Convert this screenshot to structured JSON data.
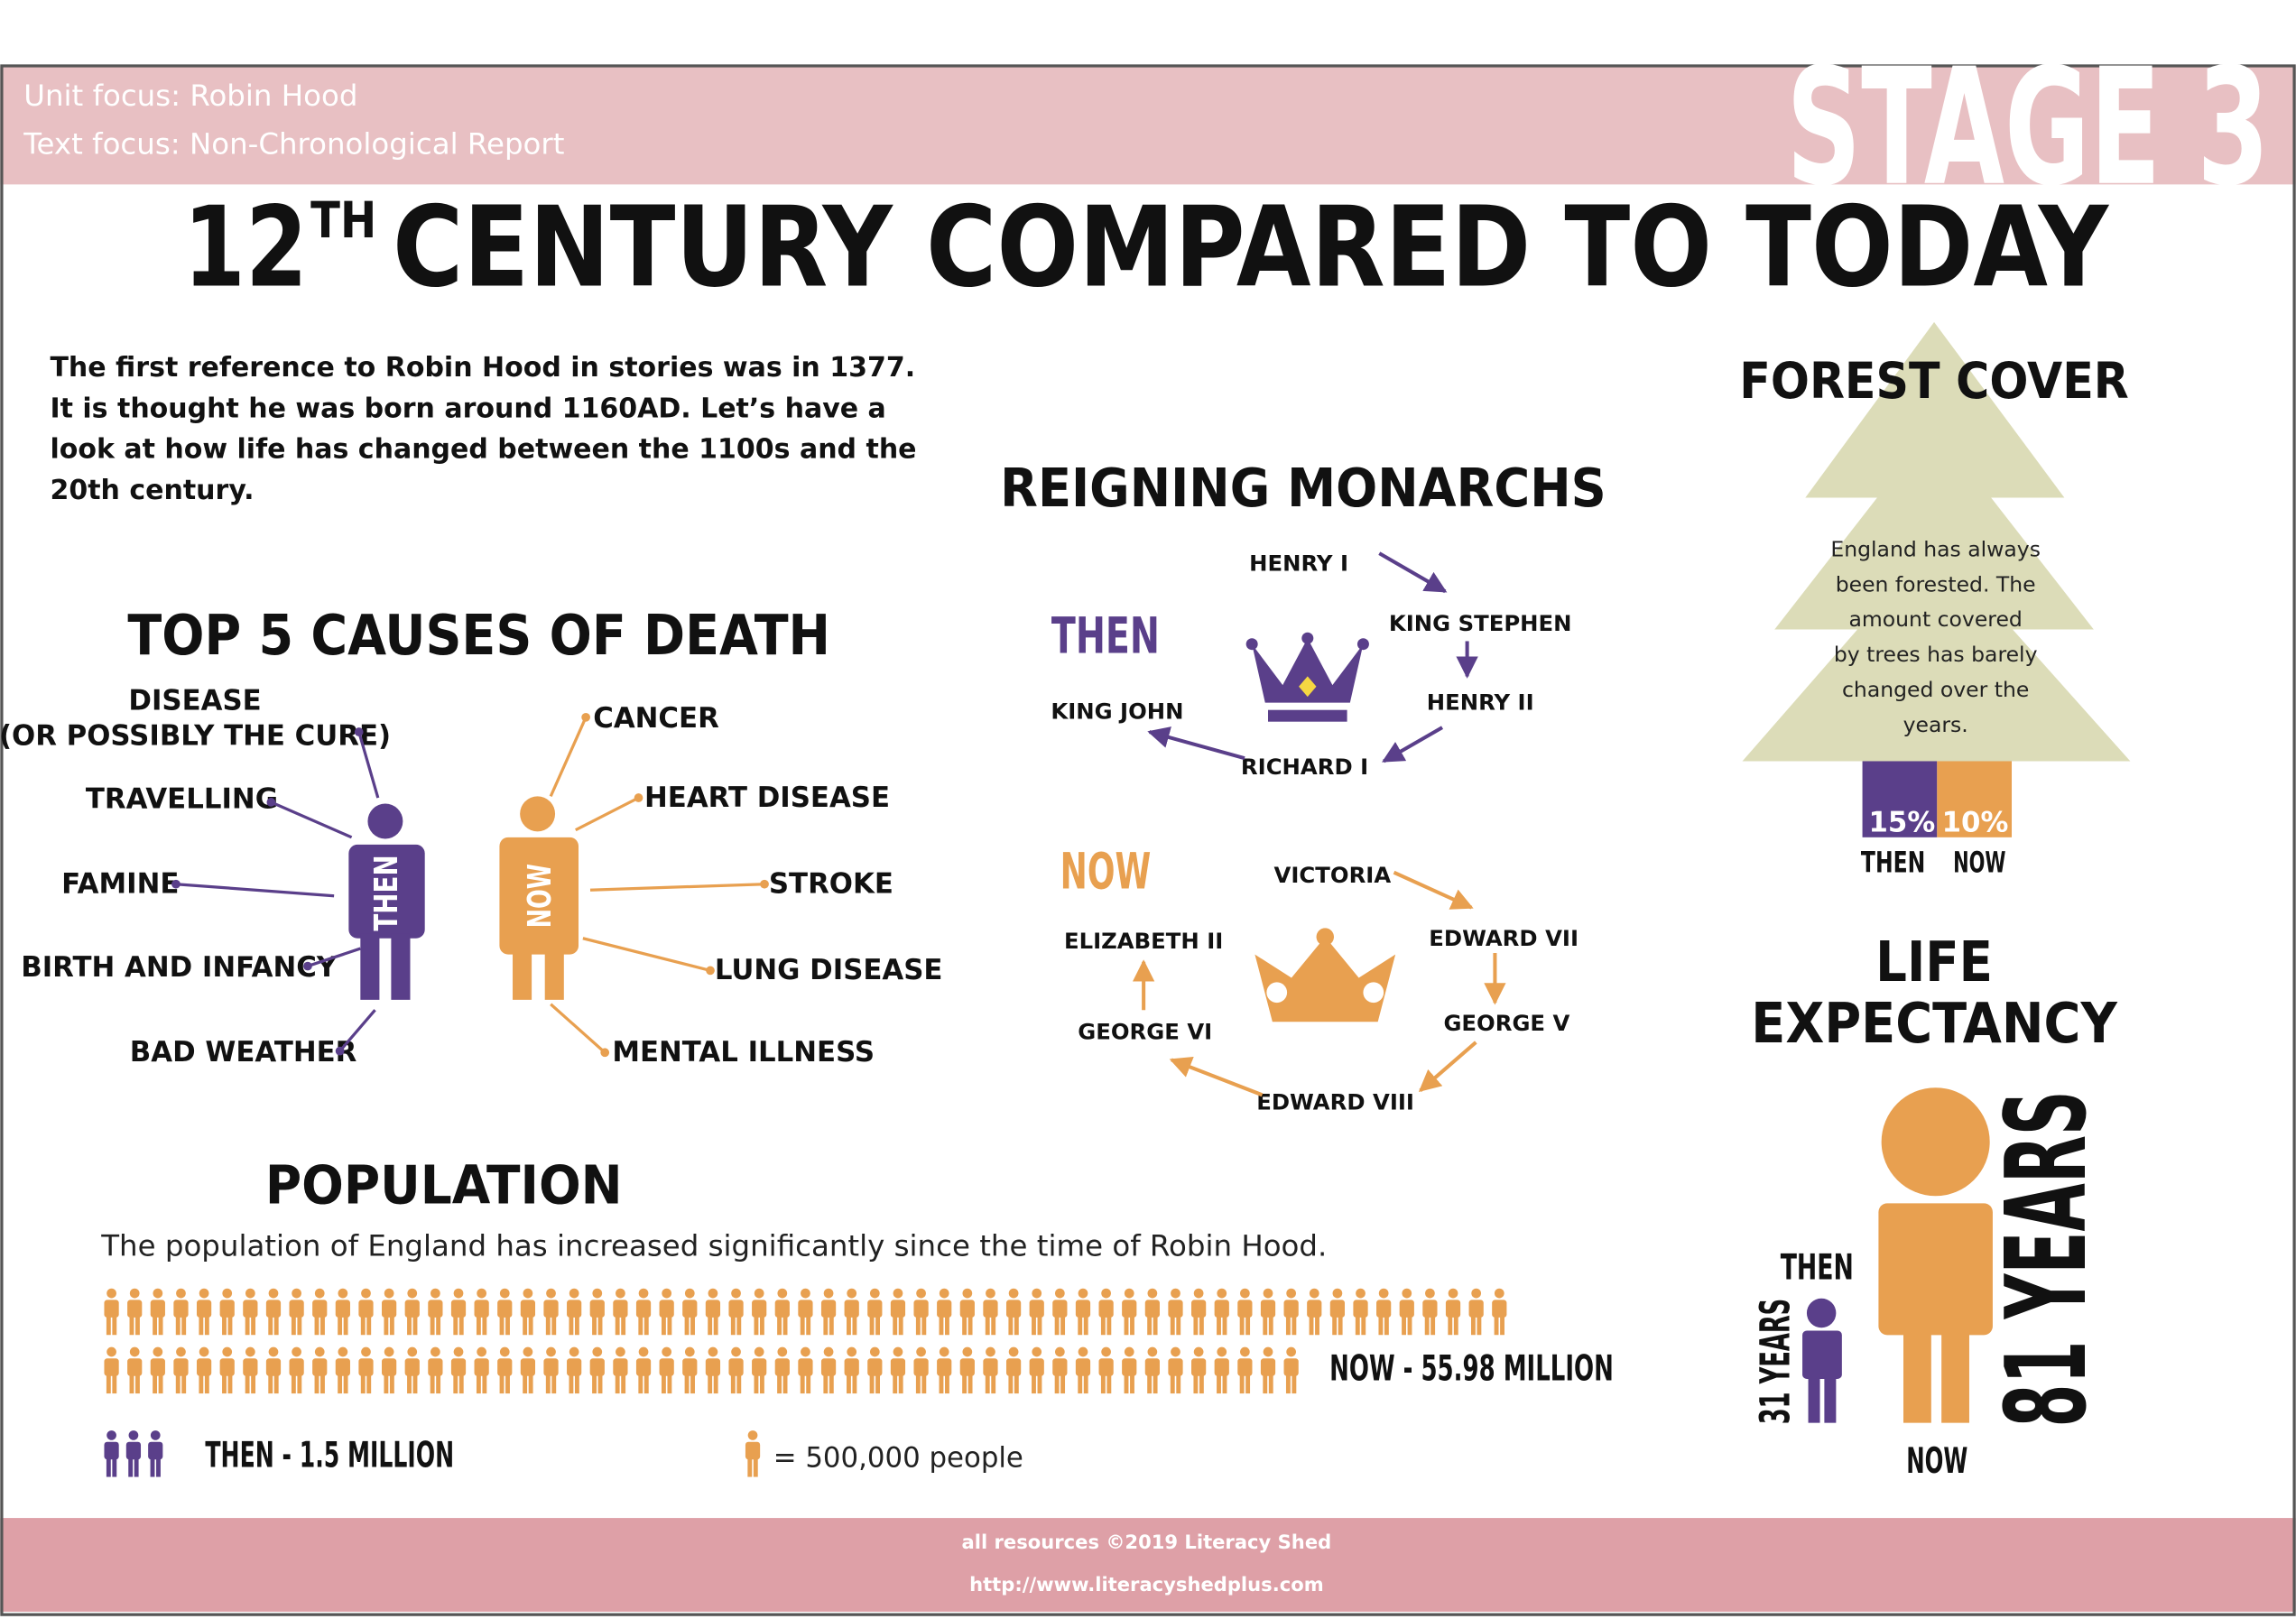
{
  "header": {
    "unit_focus": "Unit focus: Robin Hood",
    "text_focus": "Text focus: Non-Chronological Report",
    "stage": "STAGE 3"
  },
  "title": {
    "number": "12",
    "superscript": "TH",
    "rest": "CENTURY COMPARED TO TODAY"
  },
  "intro": [
    "The first reference to Robin Hood in stories was in 1377.",
    "It is thought he was born around 1160AD. Let’s have a",
    "look at how life has changed between the 1100s and the",
    "20th century."
  ],
  "causes_of_death": {
    "title": "TOP 5 CAUSES OF DEATH",
    "then_label": "THEN",
    "now_label": "NOW",
    "then": [
      [
        "DISEASE",
        "(OR POSSIBLY THE CURE)"
      ],
      [
        "TRAVELLING"
      ],
      [
        "FAMINE"
      ],
      [
        "BIRTH AND INFANCY"
      ],
      [
        "BAD WEATHER"
      ]
    ],
    "now": [
      "CANCER",
      "HEART DISEASE",
      "STROKE",
      "LUNG DISEASE",
      "MENTAL ILLNESS"
    ]
  },
  "monarchs": {
    "title": "REIGNING MONARCHS",
    "then": {
      "label": "THEN",
      "names": [
        "HENRY I",
        "KING STEPHEN",
        "HENRY II",
        "RICHARD I",
        "KING JOHN"
      ]
    },
    "now": {
      "label": "NOW",
      "names": [
        "VICTORIA",
        "EDWARD VII",
        "GEORGE V",
        "EDWARD VIII",
        "GEORGE VI",
        "ELIZABETH II"
      ]
    }
  },
  "forest_cover": {
    "title": "FOREST COVER",
    "text": [
      "England has always",
      "been forested. The",
      "amount covered",
      "by trees has barely",
      "changed over the",
      "years."
    ],
    "then_percent": "15%",
    "now_percent": "10%",
    "then_label": "THEN",
    "now_label": "NOW"
  },
  "life_expectancy": {
    "title": [
      "LIFE",
      "EXPECTANCY"
    ],
    "then_label": "THEN",
    "now_label": "NOW",
    "then_years": "31 YEARS",
    "now_years": "81 YEARS"
  },
  "population": {
    "title": "POPULATION",
    "text": "The population of England has increased significantly since the time of Robin Hood.",
    "now": "NOW - 55.98 MILLION",
    "then": "THEN - 1.5 MILLION",
    "key": "= 500,000 people"
  },
  "footer": {
    "copyright": "all resources ©2019 Literacy Shed",
    "url": "http://www.literacyshedplus.com"
  }
}
